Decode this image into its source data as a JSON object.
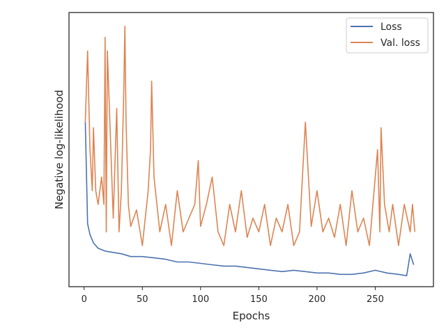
{
  "colors": {
    "loss": "#4c72b0",
    "val_loss": "#dd8452"
  },
  "chart_data": {
    "type": "line",
    "title": "",
    "xlabel": "Epochs",
    "ylabel": "Negative log-likelihood",
    "xlim": [
      -13,
      300
    ],
    "ylim": [
      0,
      1
    ],
    "xticks": [
      0,
      50,
      100,
      150,
      200,
      250
    ],
    "yticks_visible": false,
    "grid": false,
    "legend": {
      "position": "top-right",
      "entries": [
        "Loss",
        "Val. loss"
      ]
    },
    "series": [
      {
        "name": "Loss",
        "x": [
          1,
          3,
          5,
          8,
          12,
          18,
          25,
          32,
          40,
          50,
          60,
          70,
          80,
          90,
          100,
          110,
          120,
          130,
          140,
          150,
          160,
          170,
          180,
          190,
          200,
          210,
          220,
          230,
          240,
          250,
          260,
          270,
          277,
          280,
          283
        ],
        "y": [
          0.6,
          0.23,
          0.19,
          0.16,
          0.14,
          0.13,
          0.125,
          0.12,
          0.11,
          0.11,
          0.105,
          0.1,
          0.09,
          0.09,
          0.085,
          0.08,
          0.075,
          0.075,
          0.07,
          0.065,
          0.06,
          0.055,
          0.06,
          0.055,
          0.05,
          0.05,
          0.045,
          0.045,
          0.05,
          0.06,
          0.05,
          0.045,
          0.04,
          0.12,
          0.08
        ]
      },
      {
        "name": "Val. loss",
        "x": [
          1,
          3,
          5,
          7,
          8,
          10,
          12,
          15,
          17,
          18,
          19,
          20,
          25,
          28,
          30,
          32,
          34,
          35,
          36,
          38,
          40,
          45,
          50,
          55,
          57,
          58,
          60,
          65,
          70,
          75,
          80,
          85,
          90,
          95,
          98,
          100,
          105,
          110,
          115,
          120,
          125,
          130,
          135,
          140,
          145,
          150,
          155,
          160,
          165,
          170,
          175,
          180,
          185,
          190,
          192,
          195,
          200,
          205,
          210,
          215,
          220,
          225,
          230,
          235,
          240,
          245,
          252,
          254,
          255,
          258,
          262,
          265,
          270,
          275,
          280,
          282,
          284
        ],
        "y": [
          0.6,
          0.86,
          0.5,
          0.35,
          0.58,
          0.35,
          0.3,
          0.4,
          0.3,
          0.91,
          0.2,
          0.86,
          0.25,
          0.65,
          0.2,
          0.35,
          0.7,
          0.95,
          0.6,
          0.3,
          0.22,
          0.28,
          0.15,
          0.35,
          0.5,
          0.75,
          0.4,
          0.2,
          0.3,
          0.15,
          0.35,
          0.2,
          0.25,
          0.3,
          0.46,
          0.22,
          0.3,
          0.4,
          0.2,
          0.15,
          0.3,
          0.2,
          0.35,
          0.18,
          0.25,
          0.2,
          0.3,
          0.15,
          0.25,
          0.2,
          0.3,
          0.15,
          0.2,
          0.6,
          0.45,
          0.22,
          0.35,
          0.2,
          0.25,
          0.18,
          0.3,
          0.15,
          0.35,
          0.2,
          0.25,
          0.15,
          0.5,
          0.2,
          0.58,
          0.3,
          0.2,
          0.3,
          0.15,
          0.3,
          0.2,
          0.3,
          0.2
        ]
      }
    ]
  }
}
